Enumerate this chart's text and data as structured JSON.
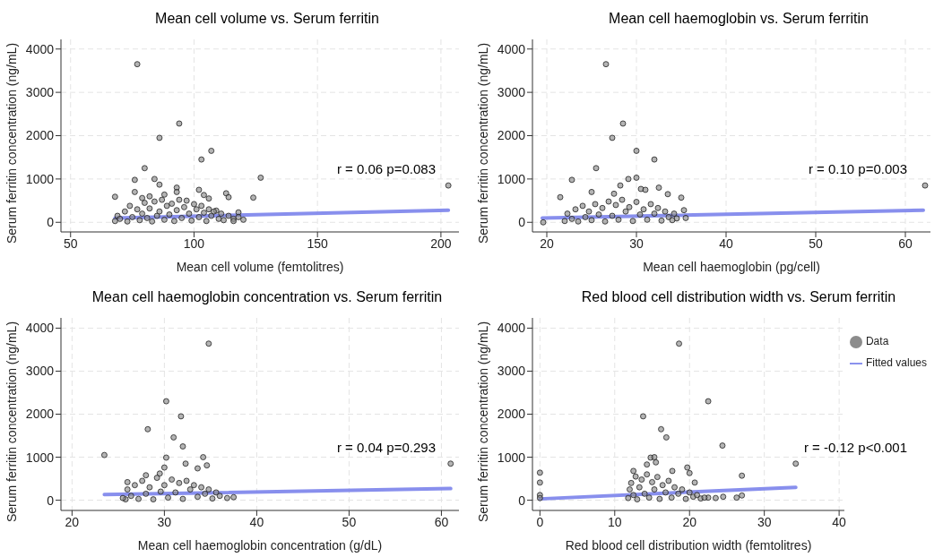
{
  "chart_data": [
    {
      "type": "scatter",
      "title": "Mean cell volume vs. Serum ferritin",
      "xlabel": "Mean cell volume (femtolitres)",
      "ylabel": "Serum ferritin concentration (ng/mL)",
      "xlim": [
        46.1,
        207.3
      ],
      "xticks": [
        50,
        100,
        150,
        200
      ],
      "ylim": [
        -222,
        4222
      ],
      "yticks": [
        0,
        1000,
        2000,
        3000,
        4000
      ],
      "grid": true,
      "marker": "circle",
      "legend": false,
      "annotations": [
        "r = 0.06 p=0.083"
      ],
      "series": [
        {
          "color": "#8c8c8c",
          "x": [
            77,
            94,
            86,
            107,
            103,
            80,
            84,
            76,
            127,
            203,
            86,
            93,
            93,
            102,
            76,
            68,
            104,
            113,
            114,
            106,
            124,
            82,
            88,
            79,
            109,
            118,
            120,
            116,
            68,
            69,
            70,
            72,
            73,
            74,
            75,
            77,
            78,
            79,
            80,
            81,
            82,
            83,
            84,
            85,
            86,
            87,
            88,
            89,
            90,
            91,
            92,
            93,
            94,
            95,
            96,
            97,
            98,
            99,
            100,
            101,
            102,
            103,
            104,
            105,
            106,
            107,
            108,
            110,
            111,
            112,
            114,
            116,
            118
          ],
          "values": [
            3650,
            2280,
            1950,
            1650,
            1450,
            1250,
            1000,
            980,
            1030,
            850,
            870,
            800,
            700,
            750,
            700,
            590,
            630,
            670,
            580,
            550,
            570,
            600,
            640,
            560,
            270,
            230,
            60,
            80,
            30,
            150,
            80,
            250,
            20,
            380,
            120,
            300,
            50,
            200,
            450,
            100,
            320,
            20,
            480,
            150,
            250,
            520,
            60,
            380,
            180,
            430,
            30,
            280,
            520,
            100,
            350,
            500,
            200,
            40,
            420,
            300,
            120,
            380,
            220,
            30,
            300,
            150,
            250,
            80,
            200,
            50,
            150,
            30,
            120
          ]
        },
        {
          "type": "line",
          "marker": "none",
          "color": "#7b83eb",
          "x": [
            68,
            203
          ],
          "values": [
            100,
            280
          ]
        }
      ]
    },
    {
      "type": "scatter",
      "title": "Mean cell haemoglobin vs. Serum ferritin",
      "xlabel": "Mean cell haemoglobin (pg/cell)",
      "ylabel": "Serum ferritin concentration (ng/mL)",
      "xlim": [
        18.4,
        62.8
      ],
      "xticks": [
        20,
        30,
        40,
        50,
        60
      ],
      "ylim": [
        -222,
        4222
      ],
      "yticks": [
        0,
        1000,
        2000,
        3000,
        4000
      ],
      "grid": true,
      "marker": "circle",
      "legend": false,
      "annotations": [
        "r = 0.10 p=0.003"
      ],
      "series": [
        {
          "color": "#8c8c8c",
          "x": [
            26.6,
            28.5,
            27.3,
            30,
            32,
            25.5,
            22.8,
            30,
            29.1,
            28.2,
            32.5,
            30.5,
            31,
            21.5,
            25,
            27.5,
            33.5,
            35,
            62.2,
            19.6,
            35.3,
            35.5,
            34.5,
            22,
            22.3,
            22.8,
            23.2,
            23.5,
            24,
            24.3,
            24.7,
            25,
            25.4,
            25.8,
            26.2,
            26.5,
            26.9,
            27.3,
            27.7,
            28,
            28.4,
            28.8,
            29.2,
            29.6,
            30,
            30.4,
            30.8,
            31.2,
            31.6,
            32,
            32.4,
            32.8,
            33.2,
            33.6,
            34,
            34.2
          ],
          "values": [
            3650,
            2280,
            1950,
            1650,
            1450,
            1250,
            980,
            1030,
            1000,
            850,
            800,
            770,
            750,
            580,
            700,
            660,
            650,
            570,
            850,
            0,
            280,
            100,
            90,
            30,
            200,
            80,
            300,
            20,
            380,
            120,
            250,
            50,
            420,
            180,
            330,
            20,
            480,
            150,
            400,
            60,
            520,
            250,
            350,
            30,
            470,
            180,
            300,
            60,
            420,
            200,
            330,
            40,
            250,
            120,
            50,
            200
          ]
        },
        {
          "type": "line",
          "marker": "none",
          "color": "#7b83eb",
          "x": [
            19.5,
            62
          ],
          "values": [
            100,
            280
          ]
        }
      ]
    },
    {
      "type": "scatter",
      "title": "Mean cell haemoglobin concentration vs. Serum ferritin",
      "xlabel": "Mean cell haemoglobin concentration (g/dL)",
      "ylabel": "Serum ferritin concentration (ng/mL)",
      "xlim": [
        18.8,
        61.9
      ],
      "xticks": [
        20,
        30,
        40,
        50,
        60
      ],
      "ylim": [
        -238,
        4238
      ],
      "yticks": [
        0,
        1000,
        2000,
        3000,
        4000
      ],
      "grid": true,
      "marker": "circle",
      "legend": false,
      "annotations": [
        "r = 0.04 p=0.293"
      ],
      "series": [
        {
          "color": "#8c8c8c",
          "x": [
            34.8,
            30.2,
            31.8,
            28.2,
            31,
            32,
            23.5,
            30.2,
            34.2,
            34.6,
            32.3,
            30,
            28,
            29.5,
            26,
            33.6,
            61,
            37.5,
            36.8,
            25.8,
            25.5,
            26,
            26.4,
            26.8,
            27.2,
            27.6,
            28,
            28.4,
            28.8,
            29.2,
            29.6,
            30,
            30.4,
            30.8,
            31.2,
            31.6,
            32,
            32.4,
            32.8,
            33.2,
            33.6,
            34,
            34.4,
            34.8,
            35.2,
            35.6,
            36
          ],
          "values": [
            3640,
            2300,
            1950,
            1650,
            1460,
            1250,
            1050,
            990,
            1000,
            810,
            850,
            760,
            580,
            620,
            420,
            740,
            850,
            70,
            50,
            20,
            50,
            250,
            100,
            350,
            30,
            450,
            150,
            300,
            20,
            520,
            200,
            350,
            60,
            480,
            180,
            400,
            30,
            450,
            250,
            350,
            80,
            300,
            150,
            250,
            40,
            180,
            100
          ]
        },
        {
          "type": "line",
          "marker": "none",
          "color": "#7b83eb",
          "x": [
            23.5,
            61
          ],
          "values": [
            130,
            270
          ]
        }
      ]
    },
    {
      "type": "scatter",
      "title": "Red blood cell distribution width vs. Serum ferritin",
      "xlabel": "Red blood cell distribution width (femtolitres)",
      "ylabel": "Serum ferritin concentration (ng/mL)",
      "xlim": [
        -1,
        40.7
      ],
      "xticks": [
        0,
        10,
        20,
        30,
        40
      ],
      "ylim": [
        -238,
        4238
      ],
      "yticks": [
        0,
        1000,
        2000,
        3000,
        4000
      ],
      "grid": true,
      "marker": "circle",
      "legend": "top right",
      "annotations": [
        "r = -0.12 p<0.001"
      ],
      "series": [
        {
          "name": "Data",
          "color": "#8c8c8c",
          "x": [
            18.6,
            22.5,
            13.8,
            16.2,
            16.9,
            24.4,
            14.8,
            15.3,
            14.3,
            15.5,
            17.7,
            19.7,
            20,
            0,
            0,
            0,
            0,
            12.5,
            34.2,
            27,
            20.7,
            27,
            26.3,
            24.5,
            23.5,
            22.5,
            11.8,
            12,
            12.2,
            12.5,
            12.8,
            13,
            13.3,
            13.6,
            14,
            14.3,
            14.6,
            15,
            15.3,
            15.7,
            16,
            16.4,
            16.8,
            17.2,
            17.6,
            18,
            18.5,
            19,
            19.5,
            20,
            20.5,
            21,
            21.5,
            22
          ],
          "values": [
            3640,
            2300,
            1950,
            1650,
            1460,
            1270,
            990,
            1000,
            830,
            880,
            680,
            760,
            630,
            640,
            410,
            120,
            50,
            680,
            850,
            570,
            410,
            110,
            60,
            80,
            50,
            60,
            50,
            250,
            400,
            120,
            550,
            20,
            300,
            480,
            150,
            600,
            60,
            420,
            250,
            540,
            30,
            350,
            180,
            450,
            60,
            300,
            150,
            250,
            30,
            180,
            80,
            120,
            40,
            60
          ]
        },
        {
          "name": "Fitted values",
          "type": "line",
          "marker": "none",
          "color": "#7b83eb",
          "x": [
            0,
            34.2
          ],
          "values": [
            30,
            300
          ]
        }
      ]
    }
  ]
}
